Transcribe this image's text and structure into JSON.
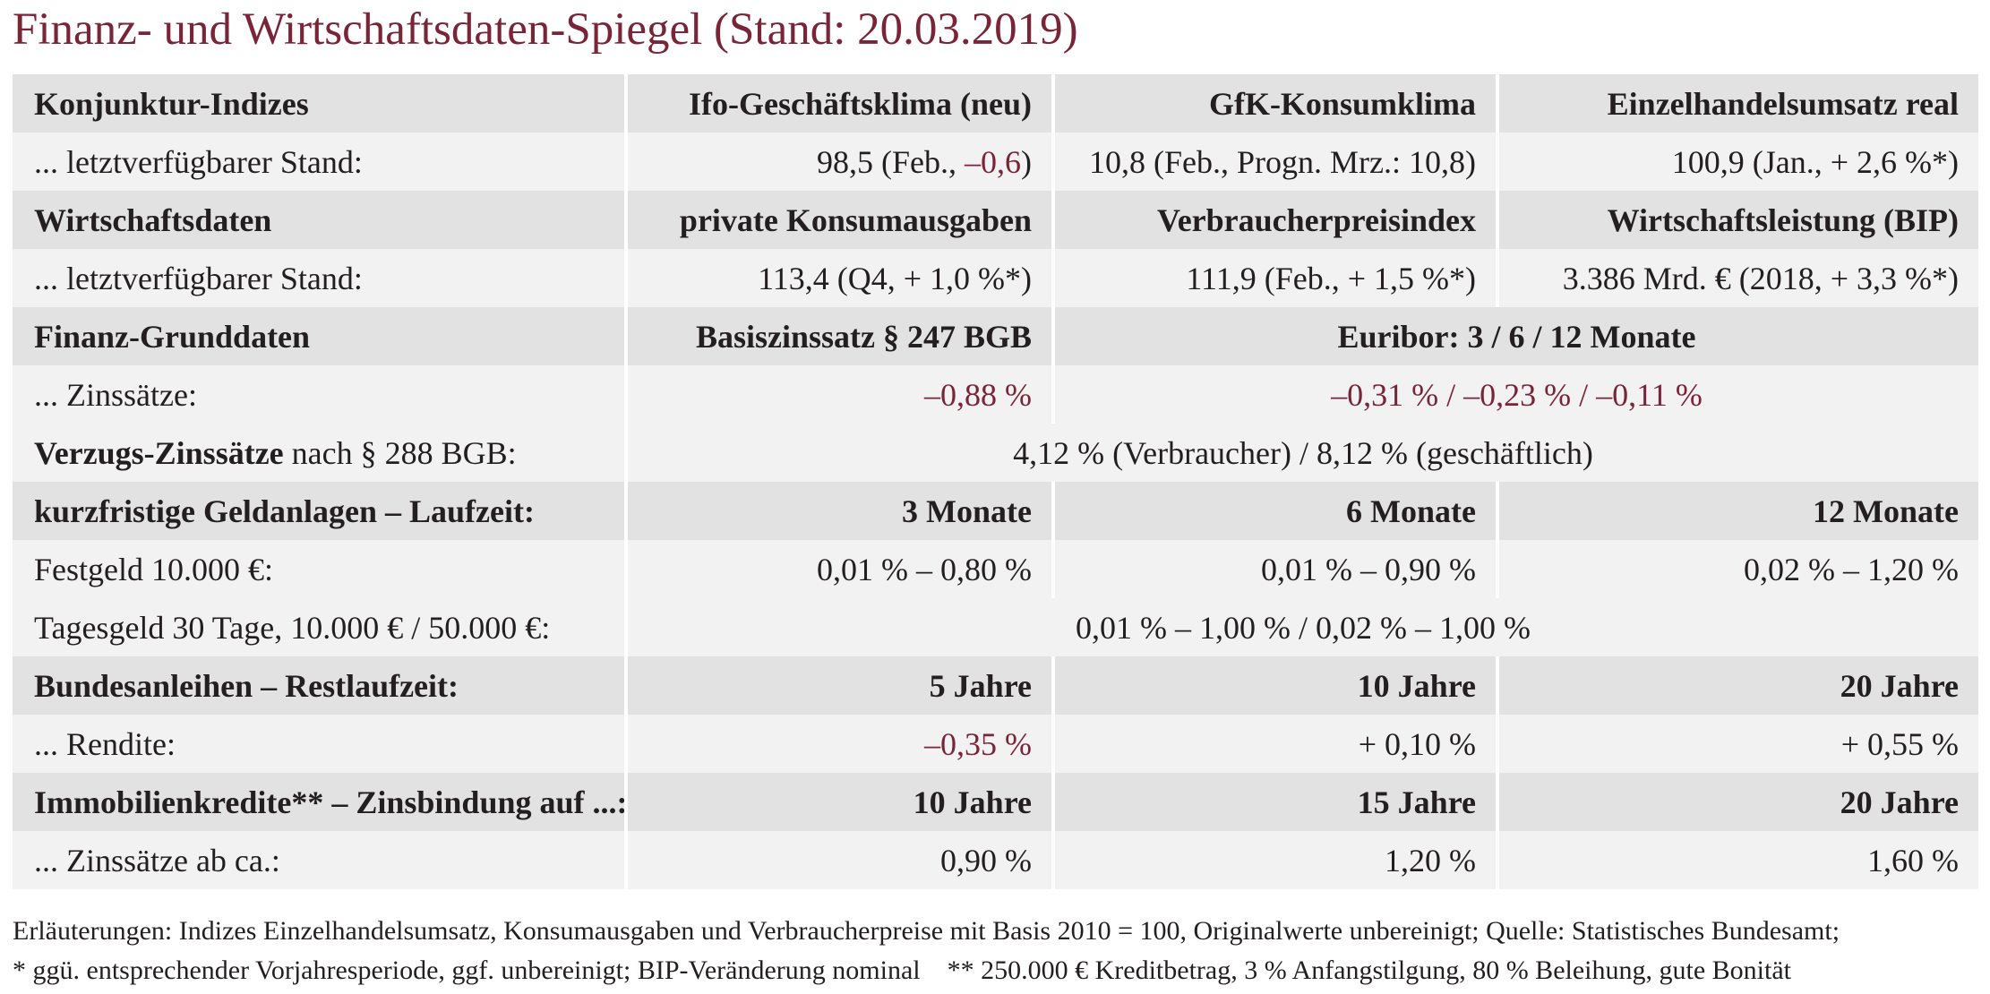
{
  "title": "Finanz- und Wirtschaftsdaten-Spiegel (Stand: 20.03.2019)",
  "rows": {
    "konj_head": {
      "label": "Konjunktur-Indizes",
      "c1": "Ifo-Geschäftsklima (neu)",
      "c2": "GfK-Konsumklima",
      "c3": "Einzelhandelsumsatz real"
    },
    "konj_val": {
      "label": "... letztverfügbarer Stand:",
      "c1_pre": "98,5 (Feb.,",
      "c1_neg": "–0,6",
      "c1_post": ")",
      "c2": "10,8 (Feb., Progn. Mrz.: 10,8)",
      "c3": "100,9 (Jan., + 2,6 %*)"
    },
    "wirt_head": {
      "label": "Wirtschaftsdaten",
      "c1": "private Konsumausgaben",
      "c2": "Verbraucherpreisindex",
      "c3": "Wirtschaftsleistung (BIP)"
    },
    "wirt_val": {
      "label": "... letztverfügbarer Stand:",
      "c1": "113,4 (Q4, + 1,0 %*)",
      "c2": "111,9 (Feb., + 1,5 %*)",
      "c3": "3.386 Mrd. € (2018, + 3,3 %*)"
    },
    "fin_head": {
      "label": "Finanz-Grunddaten",
      "c1": "Basiszinssatz § 247 BGB",
      "c23": "Euribor: 3 / 6 / 12 Monate"
    },
    "fin_val": {
      "label": "... Zinssätze:",
      "c1": "–0,88 %",
      "c23": "–0,31 % / –0,23 % / –0,11 %"
    },
    "verzug": {
      "label_bold": "Verzugs-Zinssätze",
      "label_rest": "nach § 288 BGB:",
      "value": "4,12 % (Verbraucher) / 8,12 % (geschäftlich)"
    },
    "geld_head": {
      "label": "kurzfristige Geldanlagen – Laufzeit:",
      "c1": "3 Monate",
      "c2": "6 Monate",
      "c3": "12 Monate"
    },
    "festgeld": {
      "label": "Festgeld 10.000 €:",
      "c1": "0,01 % – 0,80 %",
      "c2": "0,01 % – 0,90 %",
      "c3": "0,02 % – 1,20 %"
    },
    "tagesgeld": {
      "label": "Tagesgeld 30 Tage, 10.000 € / 50.000 €:",
      "value": "0,01 % – 1,00 % / 0,02 % – 1,00 %"
    },
    "bund_head": {
      "label": "Bundesanleihen – Restlaufzeit:",
      "c1": "5 Jahre",
      "c2": "10 Jahre",
      "c3": "20 Jahre"
    },
    "bund_val": {
      "label": "... Rendite:",
      "c1": "–0,35 %",
      "c2": "+ 0,10 %",
      "c3": "+ 0,55 %"
    },
    "immo_head": {
      "label": "Immobilienkredite** – Zinsbindung auf ...:",
      "c1": "10 Jahre",
      "c2": "15 Jahre",
      "c3": "20 Jahre"
    },
    "immo_val": {
      "label": "... Zinssätze ab ca.:",
      "c1": "0,90 %",
      "c2": "1,20 %",
      "c3": "1,60 %"
    }
  },
  "notes": [
    "Erläuterungen: Indizes Einzelhandelsumsatz, Konsumausgaben und Verbraucherpreise mit Basis 2010 = 100, Originalwerte unbereinigt; Quelle: Statistisches Bundesamt;",
    "* ggü. entsprechender Vorjahresperiode, ggf. unbereinigt; BIP-Veränderung nominal    ** 250.000 € Kreditbetrag, 3 % Anfangstilgung, 80 % Beleihung, gute Bonität"
  ],
  "colors": {
    "accent": "#7a2438",
    "header_row_bg": "#e2e2e3",
    "value_row_bg": "#f2f2f2",
    "text": "#231f20"
  }
}
